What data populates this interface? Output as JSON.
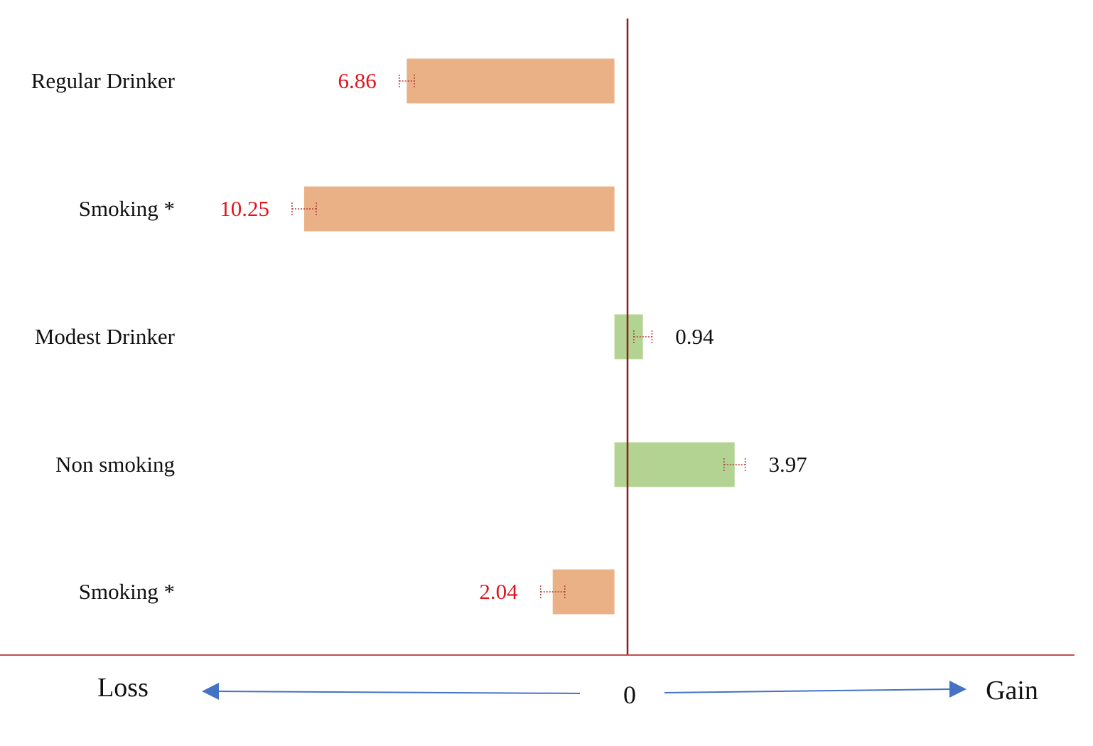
{
  "chart_data": {
    "type": "bar",
    "orientation": "horizontal",
    "categories": [
      "Regular Drinker",
      "Smoking *",
      "Modest Drinker",
      "Non smoking",
      "Smoking *"
    ],
    "values": [
      -6.86,
      -10.25,
      0.94,
      3.97,
      -2.04
    ],
    "value_labels": [
      "6.86",
      "10.25",
      "0.94",
      "3.97",
      "2.04"
    ],
    "error": [
      0.25,
      0.4,
      0.3,
      0.35,
      0.4
    ],
    "xlim": [
      -20.3,
      15.2
    ],
    "zero_label": "0",
    "left_direction_label": "Loss",
    "right_direction_label": "Gain",
    "legend": "none",
    "grid": false
  },
  "colors": {
    "loss_bar": "#e9b185",
    "gain_bar": "#b3d393",
    "loss_text": "#e0141c",
    "gain_text": "#111111",
    "zero_axis": "#8b1a1a",
    "baseline": "#c0504d",
    "error_bar": "#b3403a",
    "arrow": "#4472c4"
  }
}
